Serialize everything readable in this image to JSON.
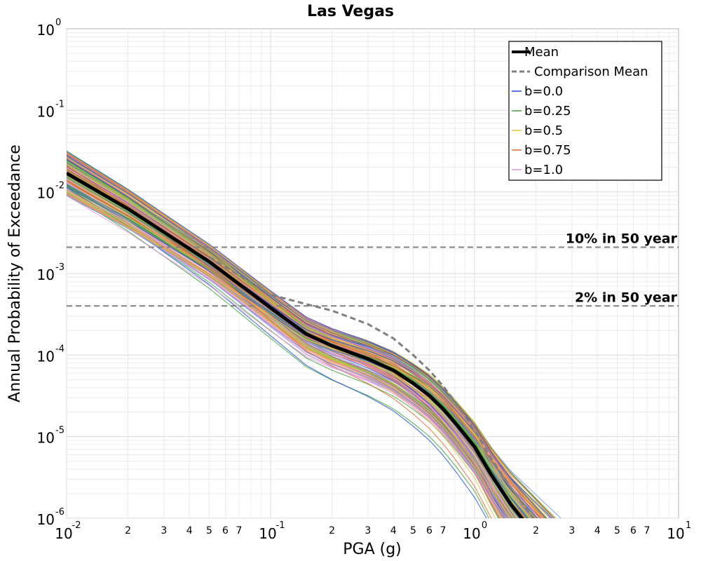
{
  "chart_data": {
    "type": "line",
    "title": "Las Vegas",
    "xlabel": "PGA (g)",
    "ylabel": "Annual Probability of Exceedance",
    "xscale": "log",
    "yscale": "log",
    "xlim": [
      0.01,
      10
    ],
    "ylim": [
      1e-06,
      1
    ],
    "grid": true,
    "legend_position": "top-right",
    "x_major_ticks": [
      {
        "base": "10",
        "exp": "-2"
      },
      {
        "base": "10",
        "exp": "-1"
      },
      {
        "base": "10",
        "exp": "0"
      },
      {
        "base": "10",
        "exp": "1"
      }
    ],
    "x_minor_tick_labels": [
      "2",
      "3",
      "4",
      "5",
      "6",
      "7"
    ],
    "y_major_ticks": [
      {
        "base": "10",
        "exp": "0"
      },
      {
        "base": "10",
        "exp": "-1"
      },
      {
        "base": "10",
        "exp": "-2"
      },
      {
        "base": "10",
        "exp": "-3"
      },
      {
        "base": "10",
        "exp": "-4"
      },
      {
        "base": "10",
        "exp": "-5"
      },
      {
        "base": "10",
        "exp": "-6"
      }
    ],
    "reference_lines": [
      {
        "label": "10% in 50 year",
        "y": 0.0021,
        "color": "#808080"
      },
      {
        "label": "2% in 50 year",
        "y": 0.0004,
        "color": "#808080"
      }
    ],
    "series": [
      {
        "name": "Mean",
        "color": "#000000",
        "style": "solid",
        "x": [
          0.01,
          0.02,
          0.05,
          0.1,
          0.15,
          0.2,
          0.3,
          0.4,
          0.5,
          0.6,
          0.7,
          0.8,
          1.0,
          1.2,
          1.5,
          2.0
        ],
        "y": [
          0.017,
          0.0062,
          0.0014,
          0.00038,
          0.00018,
          0.00013,
          9e-05,
          6.5e-05,
          4.5e-05,
          3.2e-05,
          2.2e-05,
          1.5e-05,
          7.5e-06,
          3.5e-06,
          1.5e-06,
          6e-07
        ]
      },
      {
        "name": "Comparison Mean",
        "color": "#808080",
        "style": "dashed",
        "x": [
          0.05,
          0.1,
          0.15,
          0.2,
          0.3,
          0.4,
          0.5,
          0.6,
          0.7,
          0.8,
          1.0,
          1.2,
          1.5,
          2.0,
          2.5
        ],
        "y": [
          0.0016,
          0.00055,
          0.00042,
          0.00035,
          0.00024,
          0.00016,
          0.0001,
          6.5e-05,
          4.2e-05,
          2.7e-05,
          1.2e-05,
          5.5e-06,
          2.4e-06,
          9e-07,
          4e-07
        ]
      },
      {
        "name": "b=0.0",
        "color": "#1f4fd8",
        "style": "solid",
        "group": true
      },
      {
        "name": "b=0.25",
        "color": "#3aa53a",
        "style": "solid",
        "group": true
      },
      {
        "name": "b=0.5",
        "color": "#e8c040",
        "style": "solid",
        "group": true
      },
      {
        "name": "b=0.75",
        "color": "#e06a2a",
        "style": "solid",
        "group": true
      },
      {
        "name": "b=1.0",
        "color": "#e890e0",
        "style": "solid",
        "group": true
      }
    ],
    "ensemble_colors": [
      "#1f4fd8",
      "#3aa53a",
      "#e8c040",
      "#e06a2a",
      "#e890e0",
      "#8a6a9a",
      "#f08080",
      "#f4a460",
      "#6a9ad8",
      "#9acd32"
    ]
  }
}
